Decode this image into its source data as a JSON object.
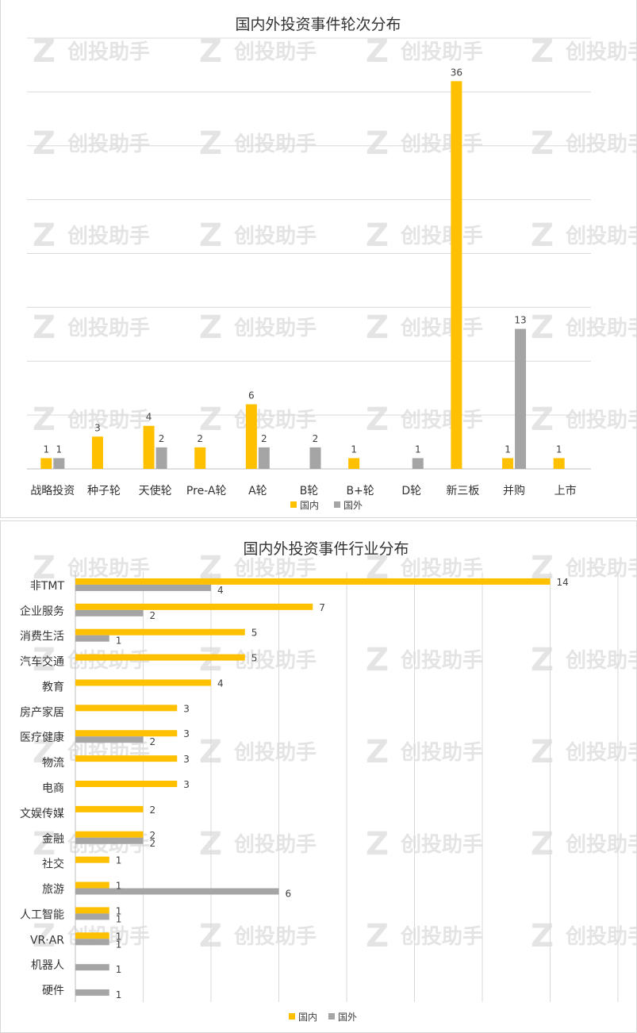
{
  "watermark": "创投助手",
  "charts": [
    {
      "type": "bar",
      "orientation": "vertical",
      "title": "国内外投资事件轮次分布",
      "categories": [
        "战略投资",
        "种子轮",
        "天使轮",
        "Pre-A轮",
        "A轮",
        "B轮",
        "B+轮",
        "D轮",
        "新三板",
        "并购",
        "上市"
      ],
      "series": [
        {
          "name": "国内",
          "color": "#ffc000",
          "values": [
            1,
            3,
            4,
            2,
            6,
            null,
            1,
            null,
            36,
            1,
            1
          ]
        },
        {
          "name": "国外",
          "color": "#a5a5a5",
          "values": [
            1,
            null,
            2,
            null,
            2,
            2,
            null,
            1,
            null,
            13,
            null
          ]
        }
      ],
      "ylim": [
        0,
        40
      ],
      "grid": true,
      "legend": "bottom"
    },
    {
      "type": "bar",
      "orientation": "horizontal",
      "title": "国内外投资事件行业分布",
      "categories": [
        "非TMT",
        "企业服务",
        "消费生活",
        "汽车交通",
        "教育",
        "房产家居",
        "医疗健康",
        "物流",
        "电商",
        "文娱传媒",
        "金融",
        "社交",
        "旅游",
        "人工智能",
        "VR·AR",
        "机器人",
        "硬件"
      ],
      "series": [
        {
          "name": "国内",
          "color": "#ffc000",
          "values": [
            14,
            7,
            5,
            5,
            4,
            3,
            3,
            3,
            3,
            2,
            2,
            1,
            1,
            1,
            1,
            null,
            null
          ]
        },
        {
          "name": "国外",
          "color": "#a5a5a5",
          "values": [
            4,
            2,
            1,
            null,
            null,
            null,
            2,
            null,
            null,
            null,
            2,
            null,
            6,
            1,
            1,
            1,
            1
          ]
        }
      ],
      "xlim": [
        0,
        16
      ],
      "grid": true,
      "legend": "bottom"
    }
  ]
}
